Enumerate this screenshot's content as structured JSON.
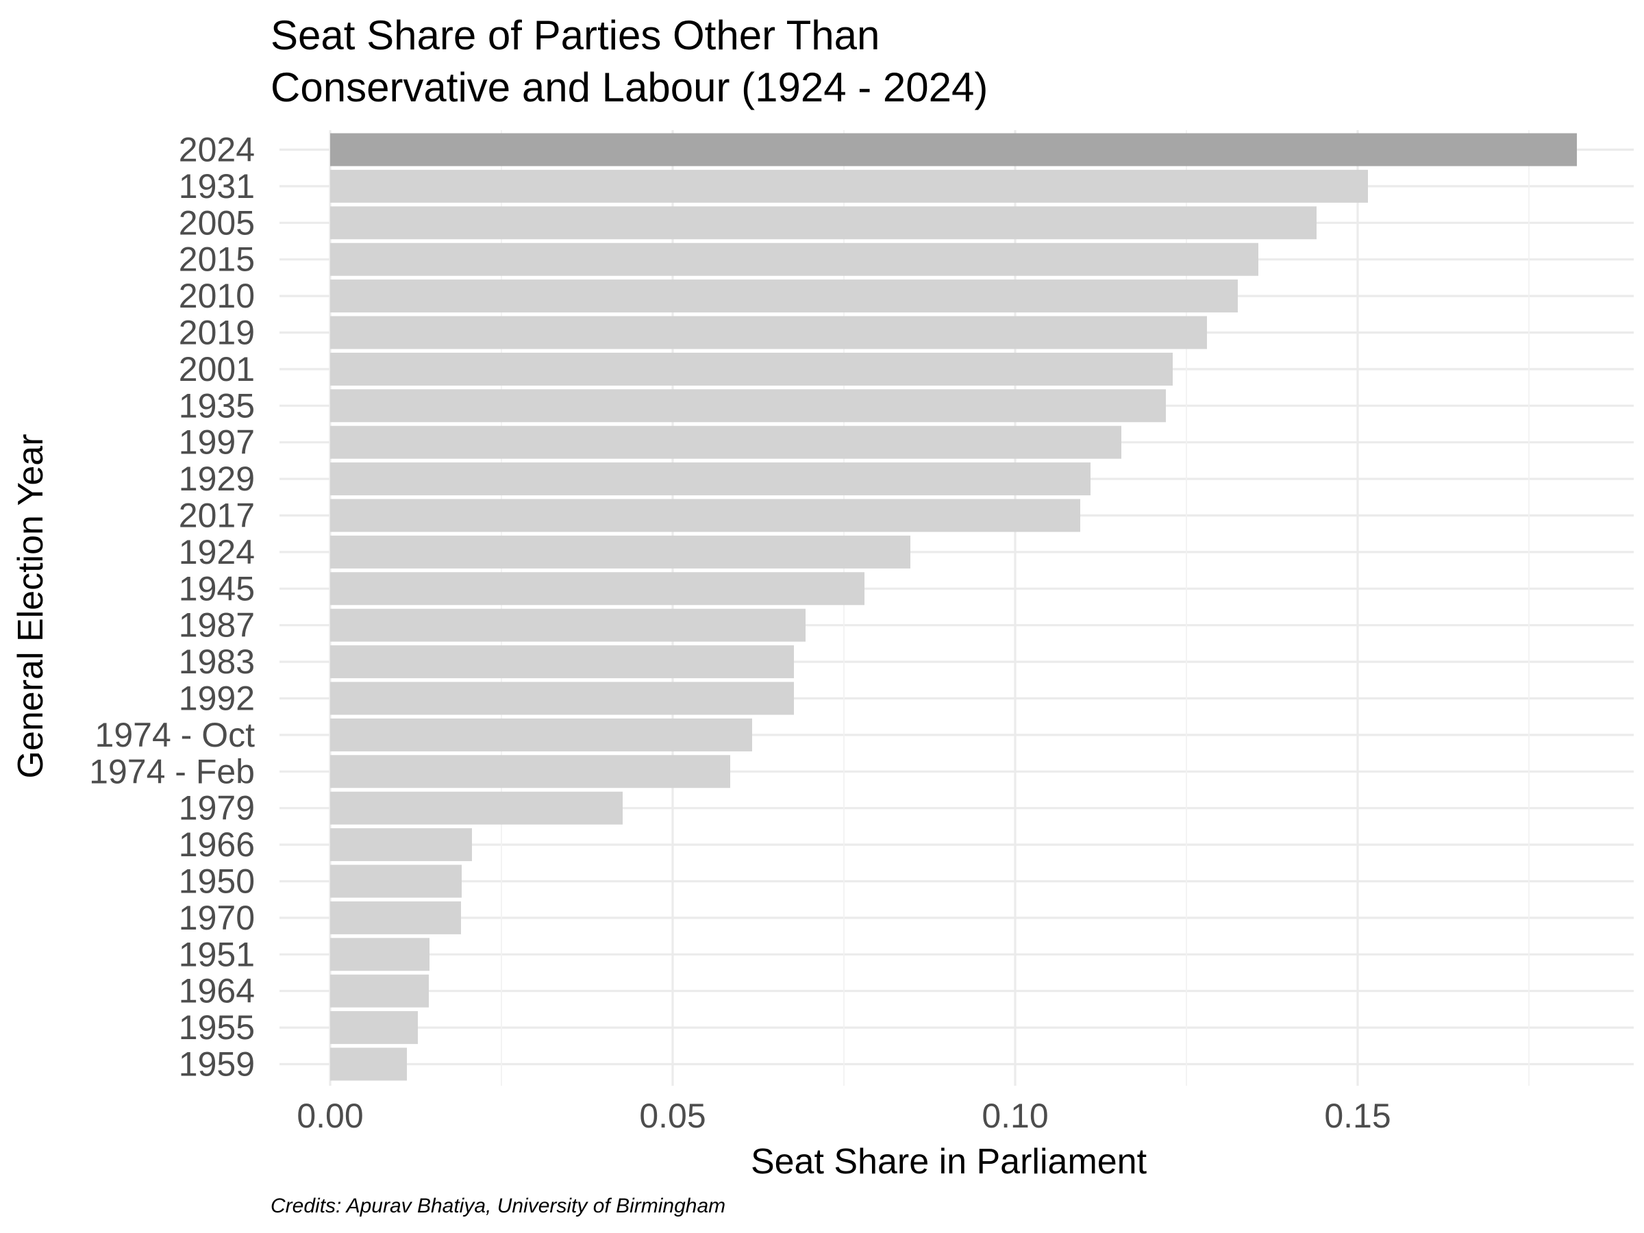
{
  "chart_data": {
    "type": "bar",
    "orientation": "horizontal",
    "title": [
      "Seat Share of Parties Other Than",
      "Conservative and Labour (1924 - 2024)"
    ],
    "xlabel": "Seat Share in Parliament",
    "ylabel": "General Election Year",
    "caption": "Credits: Apurav Bhatiya, University of Birmingham",
    "xlim": [
      0,
      0.187
    ],
    "x_ticks": [
      0.0,
      0.05,
      0.1,
      0.15
    ],
    "x_tick_labels": [
      "0.00",
      "0.05",
      "0.10",
      "0.15"
    ],
    "grid": true,
    "legend": "none",
    "colors": {
      "highlight": "#a6a6a6",
      "default": "#d3d3d3"
    },
    "categories": [
      "2024",
      "1931",
      "2005",
      "2015",
      "2010",
      "2019",
      "2001",
      "1935",
      "1997",
      "1929",
      "2017",
      "1924",
      "1945",
      "1987",
      "1983",
      "1992",
      "1974 - Oct",
      "1974 - Feb",
      "1979",
      "1966",
      "1950",
      "1970",
      "1951",
      "1964",
      "1955",
      "1959"
    ],
    "values": [
      0.182,
      0.1515,
      0.144,
      0.1355,
      0.1325,
      0.128,
      0.123,
      0.122,
      0.1155,
      0.111,
      0.1095,
      0.0847,
      0.078,
      0.0694,
      0.0677,
      0.0677,
      0.0616,
      0.0584,
      0.0427,
      0.0207,
      0.0192,
      0.0191,
      0.0145,
      0.0144,
      0.0128,
      0.0112
    ],
    "highlight": [
      "2024"
    ]
  }
}
